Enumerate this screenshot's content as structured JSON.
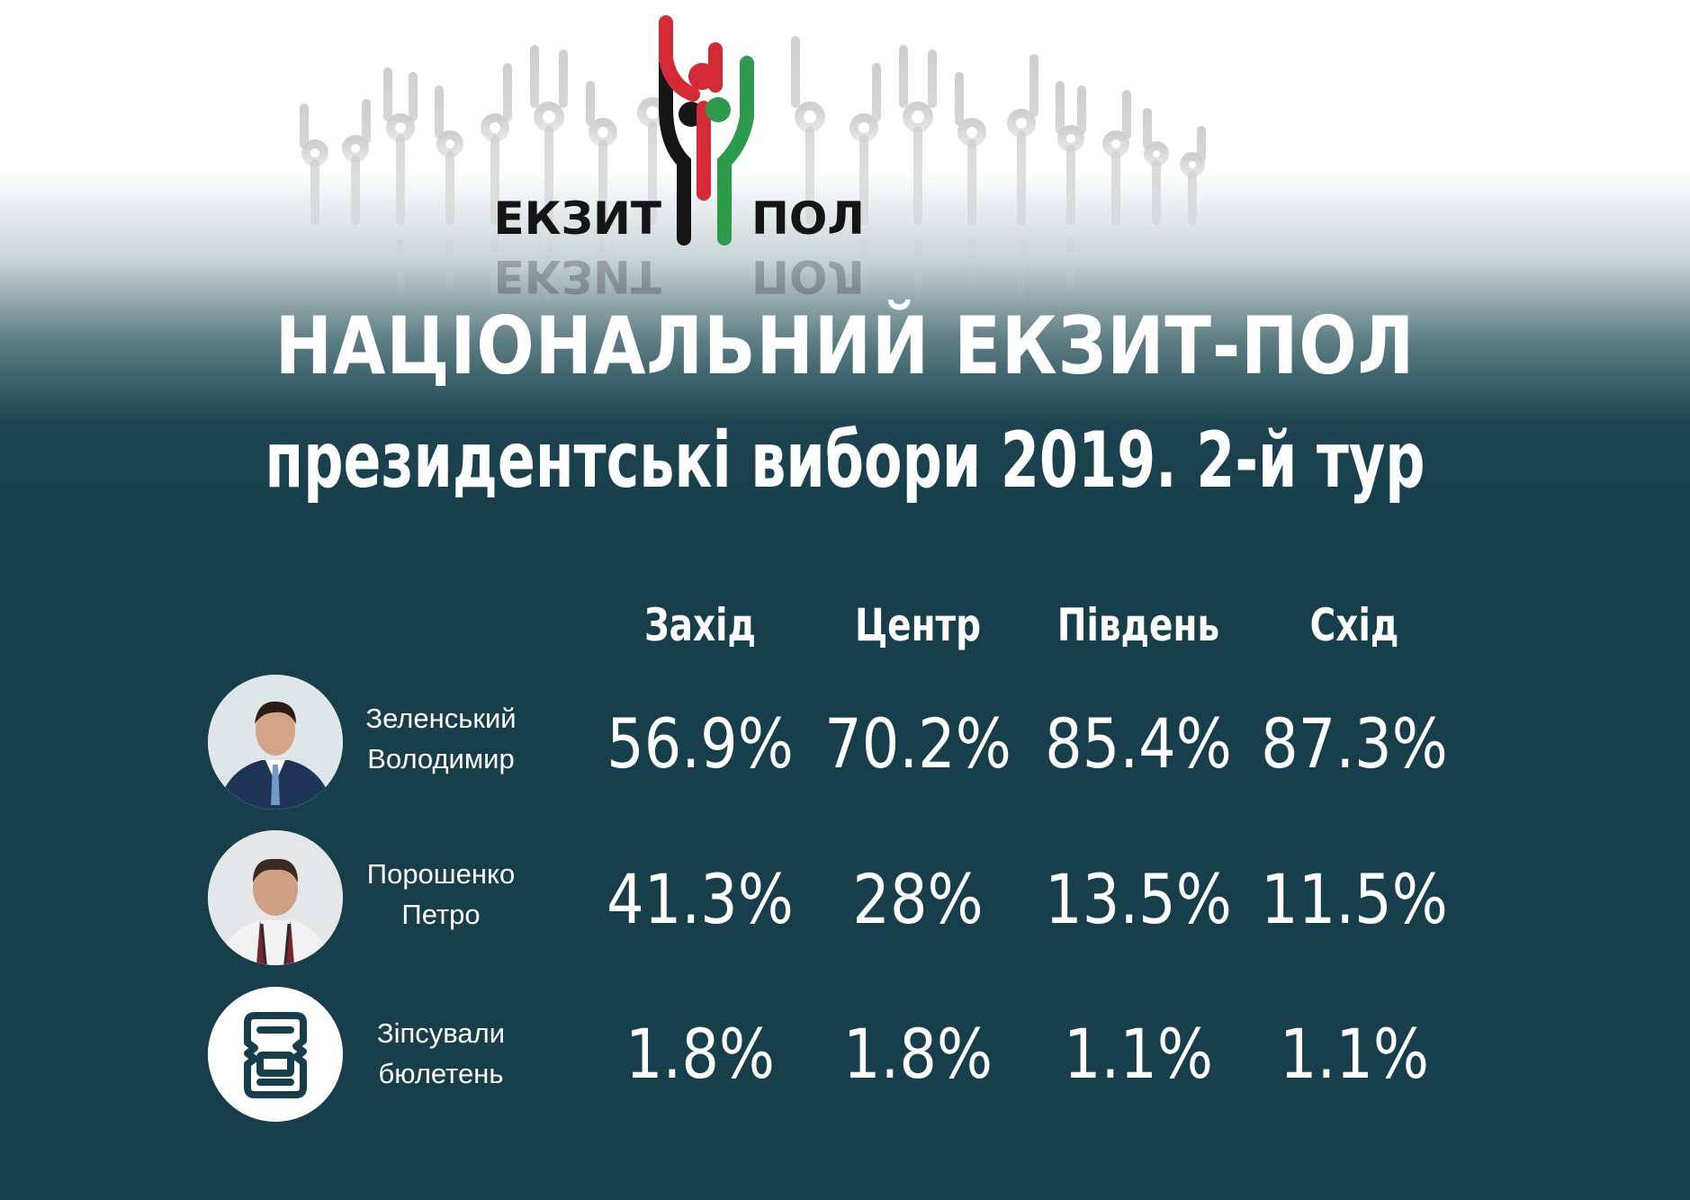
{
  "logo": {
    "left_word": "ЕКЗИТ",
    "right_word": "ПОЛ",
    "colors": {
      "black": "#151515",
      "red": "#d42a36",
      "green": "#2e9a4b",
      "ghost": "#cfcfcf"
    }
  },
  "title": "НАЦІОНАЛЬНИЙ ЕКЗИТ-ПОЛ",
  "subtitle": "президентські вибори 2019. 2-й тур",
  "chart_data": {
    "type": "table",
    "columns": [
      "Захід",
      "Центр",
      "Південь",
      "Схід"
    ],
    "rows": [
      {
        "name_line1": "Зеленський",
        "name_line2": "Володимир",
        "icon": "zelensky-photo",
        "values": [
          "56.9%",
          "70.2%",
          "85.4%",
          "87.3%"
        ]
      },
      {
        "name_line1": "Порошенко",
        "name_line2": "Петро",
        "icon": "poroshenko-photo",
        "values": [
          "41.3%",
          "28%",
          "13.5%",
          "11.5%"
        ]
      },
      {
        "name_line1": "Зіпсували",
        "name_line2": "бюлетень",
        "icon": "spoiled-ballot-icon",
        "values": [
          "1.8%",
          "1.8%",
          "1.1%",
          "1.1%"
        ]
      }
    ]
  },
  "colors": {
    "background": "#173f4b",
    "text": "#ffffff"
  }
}
